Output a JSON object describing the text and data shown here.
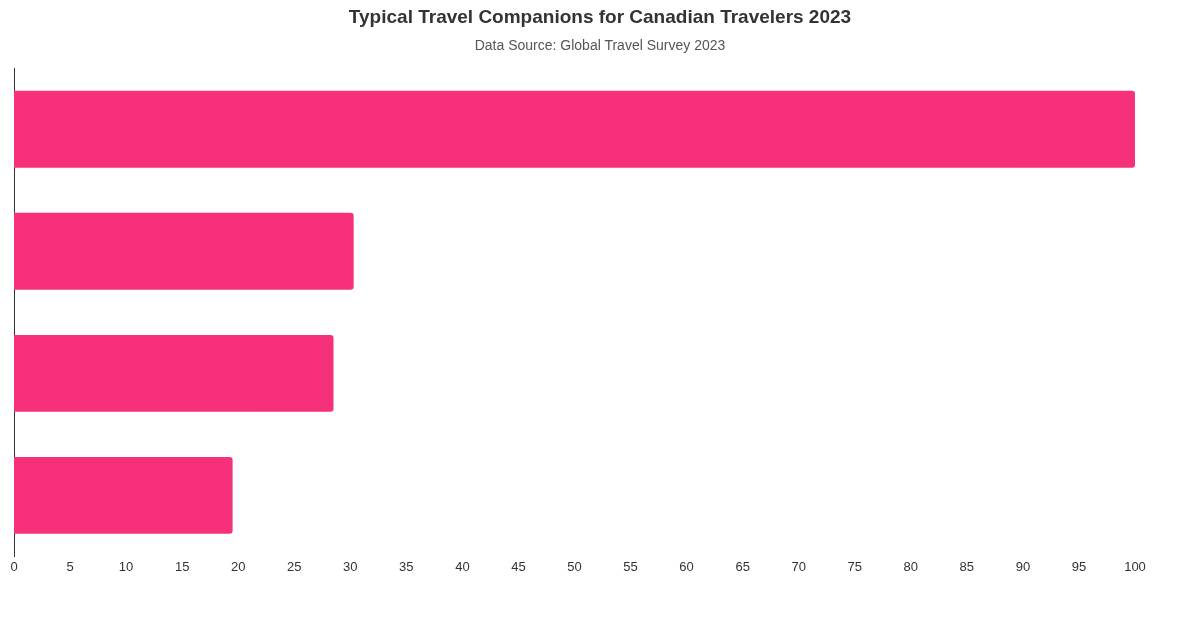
{
  "chart_data": {
    "type": "bar",
    "orientation": "horizontal",
    "title": "Typical Travel Companions for Canadian Travelers 2023",
    "subtitle": "Data Source: Global Travel Survey 2023",
    "categories": [
      null,
      null,
      null,
      null
    ],
    "values": [
      100,
      30.3,
      28.5,
      19.5
    ],
    "color": "#f6307a",
    "xlim": [
      0,
      100
    ],
    "xticks": [
      0,
      5,
      10,
      15,
      20,
      25,
      30,
      35,
      40,
      45,
      50,
      55,
      60,
      65,
      70,
      75,
      80,
      85,
      90,
      95,
      100
    ],
    "grid": false
  }
}
